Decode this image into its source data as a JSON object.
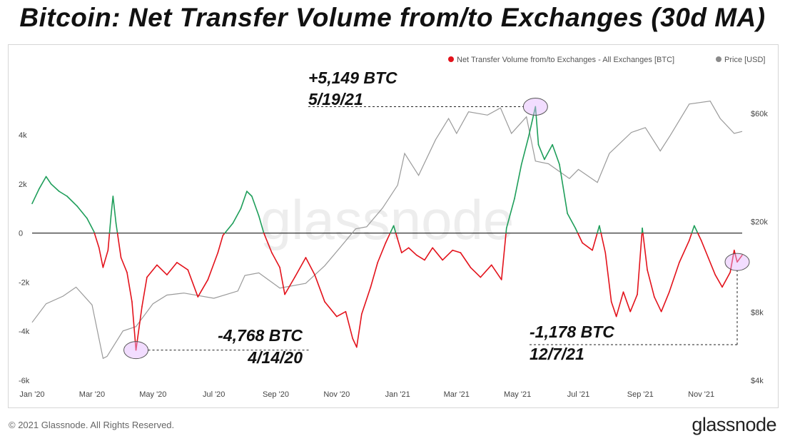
{
  "title": "Bitcoin: Net Transfer Volume from/to Exchanges (30d MA)",
  "footer": {
    "copyright": "© 2021 Glassnode. All Rights Reserved.",
    "logo": "glassnode"
  },
  "watermark": "glassnode",
  "chart_data": {
    "type": "line",
    "legend_placement": "top-right",
    "grid": false,
    "legend": [
      {
        "name": "Net Transfer Volume from/to Exchanges - All Exchanges [BTC]",
        "color": "#e3121b"
      },
      {
        "name": "Price [USD]",
        "color": "#8a8a8a"
      }
    ],
    "colors": {
      "positive": "#1e9e5a",
      "negative": "#e3121b",
      "price": "#9a9a9a",
      "zero_line": "#333333"
    },
    "x_ticks": [
      "Jan '20",
      "Mar '20",
      "May '20",
      "Jul '20",
      "Sep '20",
      "Nov '20",
      "Jan '21",
      "Mar '21",
      "May '21",
      "Jul '21",
      "Sep '21",
      "Nov '21"
    ],
    "x_range": [
      "2020-01-01",
      "2021-12-12"
    ],
    "y_left": {
      "ticks": [
        "4k",
        "2k",
        "0",
        "-2k",
        "-4k",
        "-6k"
      ],
      "values": [
        4000,
        2000,
        0,
        -2000,
        -4000,
        -6000
      ],
      "range": [
        -6000,
        6500
      ]
    },
    "y_right": {
      "scale": "log",
      "ticks": [
        "$60k",
        "$20k",
        "$8k",
        "$4k"
      ],
      "values": [
        60000,
        20000,
        8000,
        4000
      ],
      "range": [
        4000,
        90000
      ]
    },
    "series": [
      {
        "name": "Net Transfer Volume from/to Exchanges - All Exchanges [BTC]",
        "points": [
          [
            "2020-01-01",
            1200
          ],
          [
            "2020-01-08",
            1800
          ],
          [
            "2020-01-15",
            2300
          ],
          [
            "2020-01-20",
            2000
          ],
          [
            "2020-01-28",
            1700
          ],
          [
            "2020-02-05",
            1500
          ],
          [
            "2020-02-15",
            1100
          ],
          [
            "2020-02-25",
            600
          ],
          [
            "2020-03-03",
            50
          ],
          [
            "2020-03-08",
            -600
          ],
          [
            "2020-03-12",
            -1400
          ],
          [
            "2020-03-17",
            -700
          ],
          [
            "2020-03-20",
            700
          ],
          [
            "2020-03-22",
            1500
          ],
          [
            "2020-03-25",
            400
          ],
          [
            "2020-03-30",
            -1000
          ],
          [
            "2020-04-05",
            -1600
          ],
          [
            "2020-04-10",
            -2800
          ],
          [
            "2020-04-14",
            -4768
          ],
          [
            "2020-04-20",
            -3000
          ],
          [
            "2020-04-25",
            -1800
          ],
          [
            "2020-05-05",
            -1300
          ],
          [
            "2020-05-15",
            -1700
          ],
          [
            "2020-05-25",
            -1200
          ],
          [
            "2020-06-05",
            -1500
          ],
          [
            "2020-06-15",
            -2600
          ],
          [
            "2020-06-25",
            -1900
          ],
          [
            "2020-07-05",
            -800
          ],
          [
            "2020-07-10",
            -100
          ],
          [
            "2020-07-20",
            400
          ],
          [
            "2020-07-28",
            1000
          ],
          [
            "2020-08-03",
            1700
          ],
          [
            "2020-08-08",
            1500
          ],
          [
            "2020-08-15",
            700
          ],
          [
            "2020-08-20",
            0
          ],
          [
            "2020-08-28",
            -800
          ],
          [
            "2020-09-05",
            -1400
          ],
          [
            "2020-09-10",
            -2500
          ],
          [
            "2020-09-20",
            -1800
          ],
          [
            "2020-10-01",
            -1000
          ],
          [
            "2020-10-10",
            -1700
          ],
          [
            "2020-10-20",
            -2800
          ],
          [
            "2020-11-01",
            -3400
          ],
          [
            "2020-11-10",
            -3200
          ],
          [
            "2020-11-17",
            -4300
          ],
          [
            "2020-11-21",
            -4650
          ],
          [
            "2020-11-26",
            -3300
          ],
          [
            "2020-12-05",
            -2200
          ],
          [
            "2020-12-12",
            -1200
          ],
          [
            "2020-12-20",
            -400
          ],
          [
            "2020-12-28",
            300
          ],
          [
            "2021-01-05",
            -800
          ],
          [
            "2021-01-12",
            -600
          ],
          [
            "2021-01-20",
            -900
          ],
          [
            "2021-01-28",
            -1100
          ],
          [
            "2021-02-05",
            -600
          ],
          [
            "2021-02-15",
            -1100
          ],
          [
            "2021-02-25",
            -700
          ],
          [
            "2021-03-05",
            -800
          ],
          [
            "2021-03-15",
            -1400
          ],
          [
            "2021-03-25",
            -1800
          ],
          [
            "2021-04-05",
            -1300
          ],
          [
            "2021-04-15",
            -1900
          ],
          [
            "2021-04-20",
            200
          ],
          [
            "2021-04-28",
            1400
          ],
          [
            "2021-05-05",
            2800
          ],
          [
            "2021-05-12",
            3900
          ],
          [
            "2021-05-19",
            5149
          ],
          [
            "2021-05-22",
            3600
          ],
          [
            "2021-05-28",
            3000
          ],
          [
            "2021-06-05",
            3600
          ],
          [
            "2021-06-12",
            2800
          ],
          [
            "2021-06-20",
            800
          ],
          [
            "2021-06-28",
            200
          ],
          [
            "2021-07-05",
            -400
          ],
          [
            "2021-07-15",
            -700
          ],
          [
            "2021-07-22",
            300
          ],
          [
            "2021-07-28",
            -800
          ],
          [
            "2021-08-03",
            -2800
          ],
          [
            "2021-08-08",
            -3400
          ],
          [
            "2021-08-15",
            -2400
          ],
          [
            "2021-08-22",
            -3200
          ],
          [
            "2021-08-29",
            -2500
          ],
          [
            "2021-09-03",
            200
          ],
          [
            "2021-09-08",
            -1500
          ],
          [
            "2021-09-15",
            -2600
          ],
          [
            "2021-09-22",
            -3200
          ],
          [
            "2021-09-30",
            -2400
          ],
          [
            "2021-10-10",
            -1200
          ],
          [
            "2021-10-20",
            -300
          ],
          [
            "2021-10-25",
            300
          ],
          [
            "2021-11-01",
            -300
          ],
          [
            "2021-11-08",
            -1000
          ],
          [
            "2021-11-15",
            -1700
          ],
          [
            "2021-11-22",
            -2200
          ],
          [
            "2021-11-30",
            -1600
          ],
          [
            "2021-12-04",
            -700
          ],
          [
            "2021-12-07",
            -1178
          ],
          [
            "2021-12-12",
            -900
          ]
        ]
      },
      {
        "name": "Price [USD]",
        "points": [
          [
            "2020-01-01",
            7200
          ],
          [
            "2020-01-15",
            8700
          ],
          [
            "2020-02-01",
            9400
          ],
          [
            "2020-02-14",
            10300
          ],
          [
            "2020-03-01",
            8600
          ],
          [
            "2020-03-12",
            5000
          ],
          [
            "2020-03-16",
            5100
          ],
          [
            "2020-04-01",
            6600
          ],
          [
            "2020-04-14",
            6900
          ],
          [
            "2020-05-01",
            8700
          ],
          [
            "2020-05-15",
            9500
          ],
          [
            "2020-06-01",
            9700
          ],
          [
            "2020-07-01",
            9200
          ],
          [
            "2020-07-25",
            9900
          ],
          [
            "2020-08-01",
            11600
          ],
          [
            "2020-08-15",
            11900
          ],
          [
            "2020-09-05",
            10200
          ],
          [
            "2020-10-01",
            10700
          ],
          [
            "2020-10-20",
            12800
          ],
          [
            "2020-11-05",
            15500
          ],
          [
            "2020-11-20",
            18600
          ],
          [
            "2020-12-01",
            19000
          ],
          [
            "2020-12-17",
            23000
          ],
          [
            "2021-01-01",
            29000
          ],
          [
            "2021-01-08",
            40000
          ],
          [
            "2021-01-22",
            32000
          ],
          [
            "2021-02-08",
            46000
          ],
          [
            "2021-02-21",
            57000
          ],
          [
            "2021-03-01",
            49000
          ],
          [
            "2021-03-13",
            61000
          ],
          [
            "2021-04-01",
            59000
          ],
          [
            "2021-04-14",
            63500
          ],
          [
            "2021-04-25",
            49000
          ],
          [
            "2021-05-10",
            58000
          ],
          [
            "2021-05-19",
            37000
          ],
          [
            "2021-06-01",
            36000
          ],
          [
            "2021-06-22",
            31000
          ],
          [
            "2021-07-01",
            34000
          ],
          [
            "2021-07-20",
            29800
          ],
          [
            "2021-08-01",
            40000
          ],
          [
            "2021-08-23",
            49500
          ],
          [
            "2021-09-06",
            52000
          ],
          [
            "2021-09-21",
            41000
          ],
          [
            "2021-10-01",
            48000
          ],
          [
            "2021-10-20",
            66000
          ],
          [
            "2021-11-10",
            68000
          ],
          [
            "2021-11-20",
            57000
          ],
          [
            "2021-12-04",
            49000
          ],
          [
            "2021-12-12",
            50000
          ]
        ]
      }
    ],
    "annotations": [
      {
        "value_text": "+5,149 BTC",
        "date_text": "5/19/21",
        "date": "2021-05-19",
        "value": 5149
      },
      {
        "value_text": "-4,768 BTC",
        "date_text": "4/14/20",
        "date": "2020-04-14",
        "value": -4768
      },
      {
        "value_text": "-1,178 BTC",
        "date_text": "12/7/21",
        "date": "2021-12-07",
        "value": -1178
      }
    ]
  }
}
